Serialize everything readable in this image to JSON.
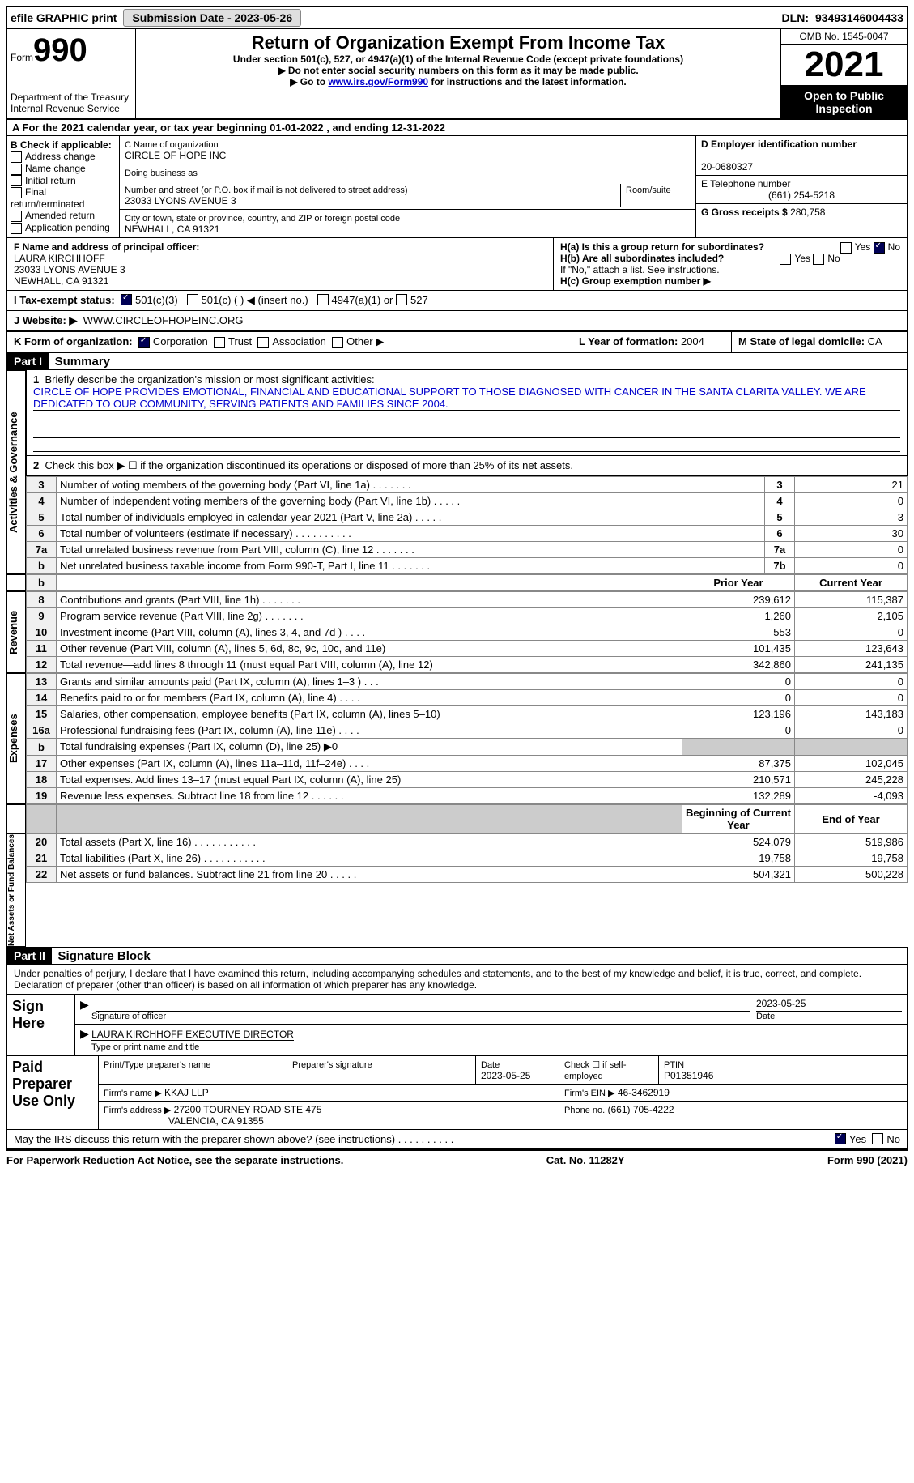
{
  "topbar": {
    "efile": "efile GRAPHIC print",
    "submission": "Submission Date - 2023-05-26",
    "dln_label": "DLN:",
    "dln": "93493146004433"
  },
  "header": {
    "form_label": "Form",
    "form_num": "990",
    "dept": "Department of the Treasury Internal Revenue Service",
    "title": "Return of Organization Exempt From Income Tax",
    "sub1": "Under section 501(c), 527, or 4947(a)(1) of the Internal Revenue Code (except private foundations)",
    "sub2": "▶ Do not enter social security numbers on this form as it may be made public.",
    "sub3_pre": "▶ Go to ",
    "sub3_link": "www.irs.gov/Form990",
    "sub3_post": " for instructions and the latest information.",
    "omb": "OMB No. 1545-0047",
    "year": "2021",
    "open": "Open to Public Inspection"
  },
  "a": {
    "text_pre": "A For the 2021 calendar year, or tax year beginning ",
    "begin": "01-01-2022",
    "mid": " , and ending ",
    "end": "12-31-2022"
  },
  "b": {
    "label": "B Check if applicable:",
    "opts": [
      "Address change",
      "Name change",
      "Initial return",
      "Final return/terminated",
      "Amended return",
      "Application pending"
    ]
  },
  "c": {
    "name_label": "C Name of organization",
    "name": "CIRCLE OF HOPE INC",
    "dba_label": "Doing business as",
    "addr_label": "Number and street (or P.O. box if mail is not delivered to street address)",
    "room_label": "Room/suite",
    "addr": "23033 LYONS AVENUE 3",
    "city_label": "City or town, state or province, country, and ZIP or foreign postal code",
    "city": "NEWHALL, CA  91321"
  },
  "d": {
    "label": "D Employer identification number",
    "val": "20-0680327"
  },
  "e": {
    "label": "E Telephone number",
    "val": "(661) 254-5218"
  },
  "g": {
    "label": "G Gross receipts $",
    "val": "280,758"
  },
  "f": {
    "label": "F Name and address of principal officer:",
    "name": "LAURA KIRCHHOFF",
    "addr1": "23033 LYONS AVENUE 3",
    "addr2": "NEWHALL, CA  91321"
  },
  "h": {
    "a": "H(a)  Is this a group return for subordinates?",
    "b": "H(b)  Are all subordinates included?",
    "note": "If \"No,\" attach a list. See instructions.",
    "c": "H(c)  Group exemption number ▶",
    "yes": "Yes",
    "no": "No"
  },
  "i": {
    "label": "I    Tax-exempt status:",
    "opt1": "501(c)(3)",
    "opt2": "501(c) (  ) ◀ (insert no.)",
    "opt3": "4947(a)(1) or",
    "opt4": "527"
  },
  "j": {
    "label": "J    Website: ▶",
    "val": "WWW.CIRCLEOFHOPEINC.ORG"
  },
  "k": {
    "label": "K Form of organization:",
    "opts": [
      "Corporation",
      "Trust",
      "Association",
      "Other ▶"
    ]
  },
  "l": {
    "label": "L Year of formation:",
    "val": "2004"
  },
  "m": {
    "label": "M State of legal domicile:",
    "val": "CA"
  },
  "part1": {
    "tag": "Part I",
    "title": "Summary"
  },
  "summary": {
    "line1_label": "Briefly describe the organization's mission or most significant activities:",
    "mission": "CIRCLE OF HOPE PROVIDES EMOTIONAL, FINANCIAL AND EDUCATIONAL SUPPORT TO THOSE DIAGNOSED WITH CANCER IN THE SANTA CLARITA VALLEY. WE ARE DEDICATED TO OUR COMMUNITY, SERVING PATIENTS AND FAMILIES SINCE 2004.",
    "line2": "Check this box ▶ ☐  if the organization discontinued its operations or disposed of more than 25% of its net assets.",
    "vlabels": {
      "ag": "Activities & Governance",
      "rev": "Revenue",
      "exp": "Expenses",
      "na": "Net Assets or Fund Balances"
    },
    "rows": [
      {
        "n": "3",
        "desc": "Number of voting members of the governing body (Part VI, line 1a)   .    .    .    .    .    .    .",
        "r": "3",
        "v": "21"
      },
      {
        "n": "4",
        "desc": "Number of independent voting members of the governing body (Part VI, line 1b)   .    .    .    .    .",
        "r": "4",
        "v": "0"
      },
      {
        "n": "5",
        "desc": "Total number of individuals employed in calendar year 2021 (Part V, line 2a)   .    .    .    .    .",
        "r": "5",
        "v": "3"
      },
      {
        "n": "6",
        "desc": "Total number of volunteers (estimate if necessary)    .    .    .    .    .    .    .    .    .    .",
        "r": "6",
        "v": "30"
      },
      {
        "n": "7a",
        "desc": "Total unrelated business revenue from Part VIII, column (C), line 12    .    .    .    .    .    .    .",
        "r": "7a",
        "v": "0"
      },
      {
        "n": "b",
        "desc": "Net unrelated business taxable income from Form 990-T, Part I, line 11   .    .    .    .    .    .    .",
        "r": "7b",
        "v": "0"
      }
    ],
    "header_prior": "Prior Year",
    "header_current": "Current Year",
    "rev_rows": [
      {
        "n": "8",
        "desc": "Contributions and grants (Part VIII, line 1h)    .    .    .    .    .    .    .",
        "p": "239,612",
        "c": "115,387"
      },
      {
        "n": "9",
        "desc": "Program service revenue (Part VIII, line 2g)    .    .    .    .    .    .    .",
        "p": "1,260",
        "c": "2,105"
      },
      {
        "n": "10",
        "desc": "Investment income (Part VIII, column (A), lines 3, 4, and 7d )    .    .    .    .",
        "p": "553",
        "c": "0"
      },
      {
        "n": "11",
        "desc": "Other revenue (Part VIII, column (A), lines 5, 6d, 8c, 9c, 10c, and 11e)",
        "p": "101,435",
        "c": "123,643"
      },
      {
        "n": "12",
        "desc": "Total revenue—add lines 8 through 11 (must equal Part VIII, column (A), line 12)",
        "p": "342,860",
        "c": "241,135"
      }
    ],
    "exp_rows": [
      {
        "n": "13",
        "desc": "Grants and similar amounts paid (Part IX, column (A), lines 1–3 )   .    .    .",
        "p": "0",
        "c": "0"
      },
      {
        "n": "14",
        "desc": "Benefits paid to or for members (Part IX, column (A), line 4)   .    .    .    .",
        "p": "0",
        "c": "0"
      },
      {
        "n": "15",
        "desc": "Salaries, other compensation, employee benefits (Part IX, column (A), lines 5–10)",
        "p": "123,196",
        "c": "143,183"
      },
      {
        "n": "16a",
        "desc": "Professional fundraising fees (Part IX, column (A), line 11e)    .    .    .    .",
        "p": "0",
        "c": "0"
      },
      {
        "n": "b",
        "desc": "Total fundraising expenses (Part IX, column (D), line 25) ▶0",
        "p": "",
        "c": "",
        "shaded": true
      },
      {
        "n": "17",
        "desc": "Other expenses (Part IX, column (A), lines 11a–11d, 11f–24e)   .    .    .    .",
        "p": "87,375",
        "c": "102,045"
      },
      {
        "n": "18",
        "desc": "Total expenses. Add lines 13–17 (must equal Part IX, column (A), line 25)",
        "p": "210,571",
        "c": "245,228"
      },
      {
        "n": "19",
        "desc": "Revenue less expenses. Subtract line 18 from line 12   .    .    .    .    .    .",
        "p": "132,289",
        "c": "-4,093"
      }
    ],
    "header_begin": "Beginning of Current Year",
    "header_end": "End of Year",
    "na_rows": [
      {
        "n": "20",
        "desc": "Total assets (Part X, line 16)   .    .    .    .    .    .    .    .    .    .    .",
        "p": "524,079",
        "c": "519,986"
      },
      {
        "n": "21",
        "desc": "Total liabilities (Part X, line 26)   .    .    .    .    .    .    .    .    .    .    .",
        "p": "19,758",
        "c": "19,758"
      },
      {
        "n": "22",
        "desc": "Net assets or fund balances. Subtract line 21 from line 20    .    .    .    .    .",
        "p": "504,321",
        "c": "500,228"
      }
    ]
  },
  "part2": {
    "tag": "Part II",
    "title": "Signature Block",
    "decl": "Under penalties of perjury, I declare that I have examined this return, including accompanying schedules and statements, and to the best of my knowledge and belief, it is true, correct, and complete. Declaration of preparer (other than officer) is based on all information of which preparer has any knowledge."
  },
  "sign": {
    "here": "Sign Here",
    "sig_label": "Signature of officer",
    "date": "2023-05-25",
    "date_label": "Date",
    "name": "LAURA KIRCHHOFF  EXECUTIVE DIRECTOR",
    "name_label": "Type or print name and title"
  },
  "paid": {
    "title": "Paid Preparer Use Only",
    "print_label": "Print/Type preparer's name",
    "sig_label": "Preparer's signature",
    "date_label": "Date",
    "date": "2023-05-25",
    "check_label": "Check ☐ if self-employed",
    "ptin_label": "PTIN",
    "ptin": "P01351946",
    "firm_name_label": "Firm's name    ▶",
    "firm_name": "KKAJ LLP",
    "firm_ein_label": "Firm's EIN ▶",
    "firm_ein": "46-3462919",
    "firm_addr_label": "Firm's address ▶",
    "firm_addr1": "27200 TOURNEY ROAD STE 475",
    "firm_addr2": "VALENCIA, CA  91355",
    "phone_label": "Phone no.",
    "phone": "(661) 705-4222"
  },
  "may": {
    "text": "May the IRS discuss this return with the preparer shown above? (see instructions)    .    .    .    .    .    .    .    .    .    .",
    "yes": "Yes",
    "no": "No"
  },
  "footer": {
    "left": "For Paperwork Reduction Act Notice, see the separate instructions.",
    "center": "Cat. No. 11282Y",
    "right": "Form 990 (2021)"
  }
}
